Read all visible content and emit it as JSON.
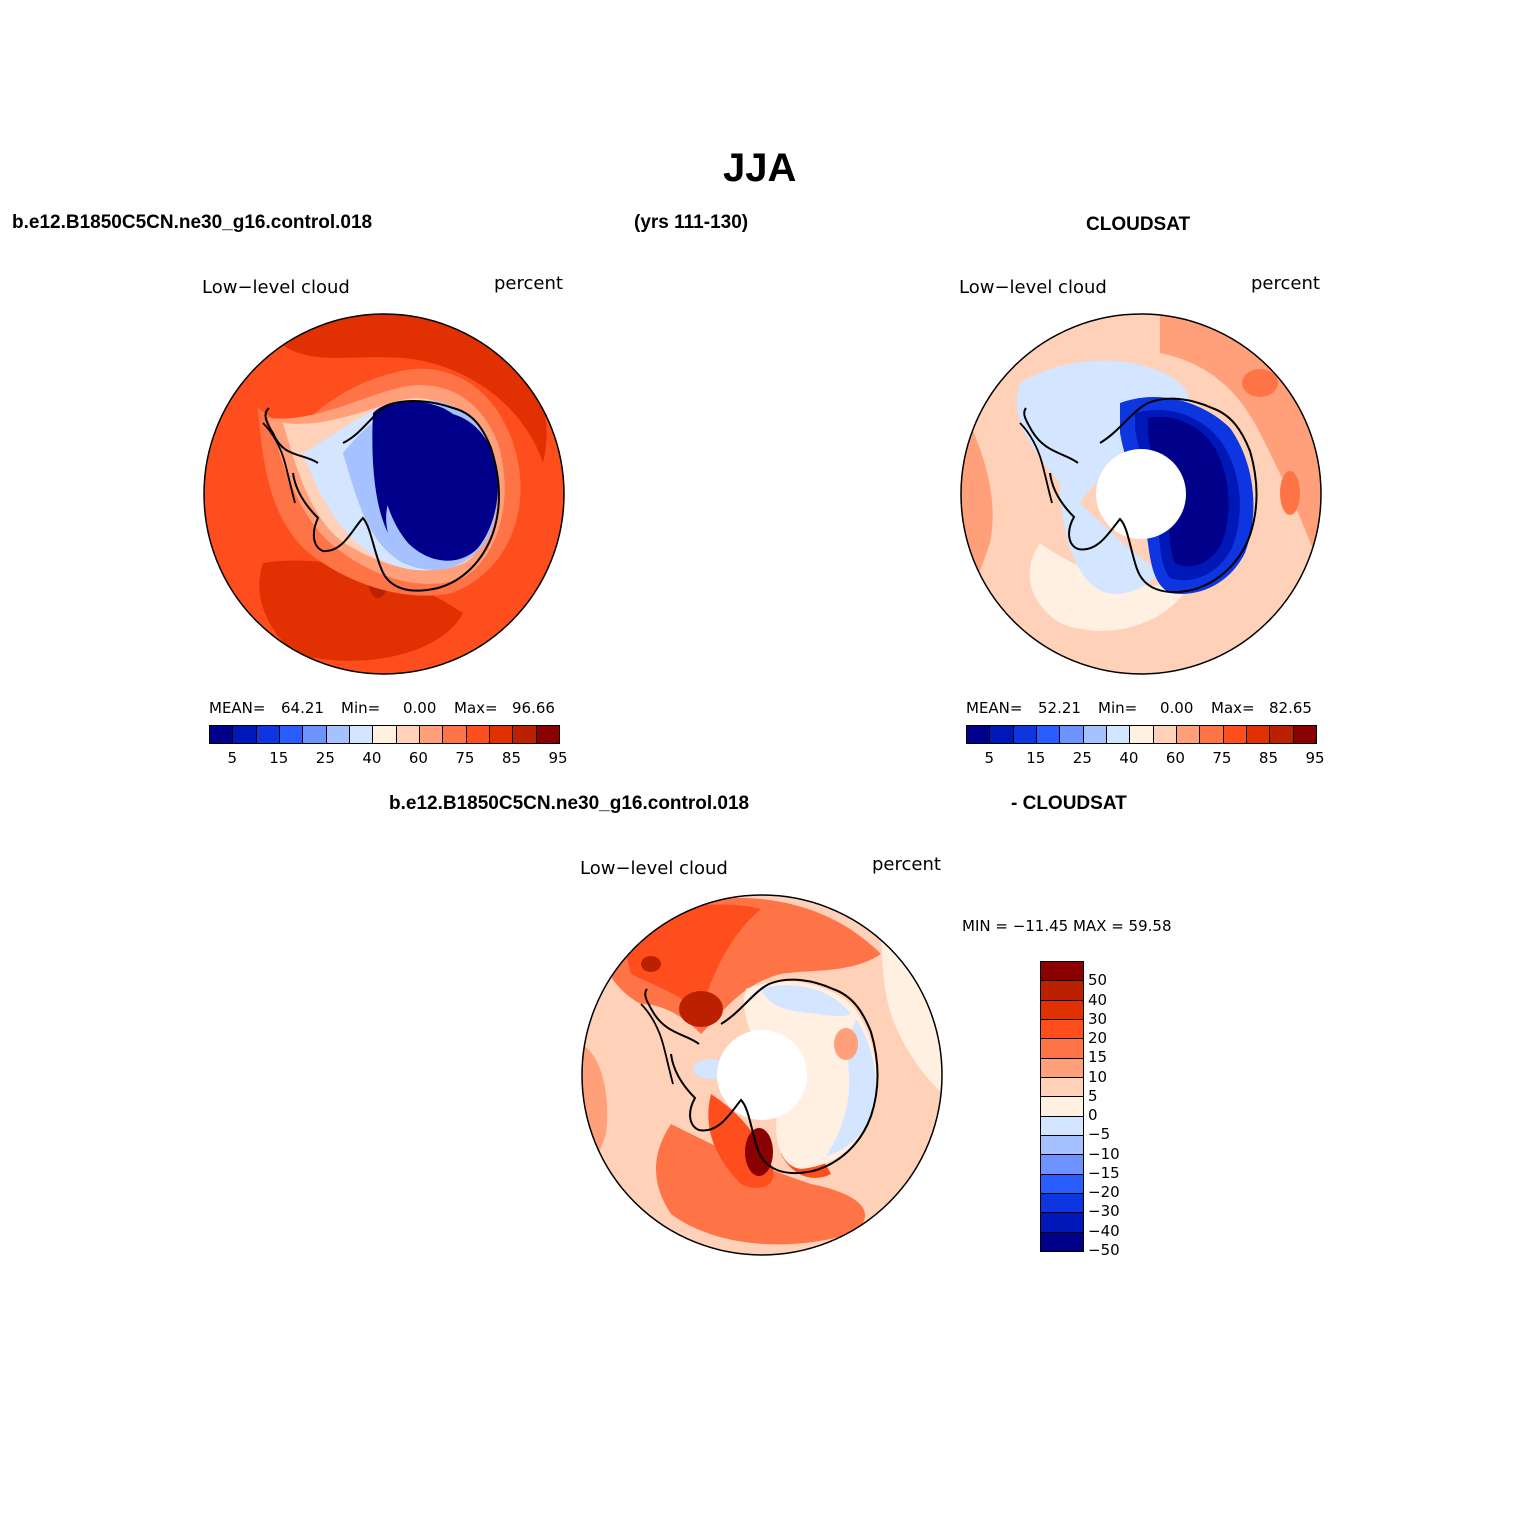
{
  "figure": {
    "title": "JJA",
    "case_name": "b.e12.B1850C5CN.ne30_g16.control.018",
    "years": "(yrs 111-130)",
    "obs_name": "CLOUDSAT",
    "diff_case": "b.e12.B1850C5CN.ne30_g16.control.018",
    "diff_obs": "- CLOUDSAT"
  },
  "panels": {
    "model": {
      "variable": "Low−level cloud",
      "units": "percent",
      "mean_label": "MEAN=",
      "mean": "64.21",
      "min_label": "Min=",
      "min": "0.00",
      "max_label": "Max=",
      "max": "96.66"
    },
    "obs": {
      "variable": "Low−level cloud",
      "units": "percent",
      "mean_label": "MEAN=",
      "mean": "52.21",
      "min_label": "Min=",
      "min": "0.00",
      "max_label": "Max=",
      "max": "82.65"
    },
    "diff": {
      "variable": "Low−level cloud",
      "units": "percent",
      "minmax": "MIN = −11.45 MAX =   59.58"
    }
  },
  "colorbars": {
    "absolute": {
      "labels": [
        "5",
        "15",
        "25",
        "40",
        "60",
        "75",
        "85",
        "95"
      ],
      "colors": [
        "#00008b",
        "#0018b8",
        "#0d36e0",
        "#2a5dff",
        "#6c93ff",
        "#a5c1ff",
        "#d3e5ff",
        "#fff0e2",
        "#ffd1b8",
        "#ffa07a",
        "#ff7447",
        "#ff4e1e",
        "#e13002",
        "#bb2000",
        "#8b0000"
      ]
    },
    "difference": {
      "labels": [
        "50",
        "40",
        "30",
        "20",
        "15",
        "10",
        "5",
        "0",
        "−5",
        "−10",
        "−15",
        "−20",
        "−30",
        "−40",
        "−50"
      ],
      "colors": [
        "#8b0000",
        "#bb2000",
        "#e13002",
        "#ff4e1e",
        "#ff7447",
        "#ffa07a",
        "#ffd1b8",
        "#fff0e2",
        "#d3e5ff",
        "#a5c1ff",
        "#6c93ff",
        "#2a5dff",
        "#0d36e0",
        "#0018b8",
        "#00008b"
      ]
    }
  }
}
